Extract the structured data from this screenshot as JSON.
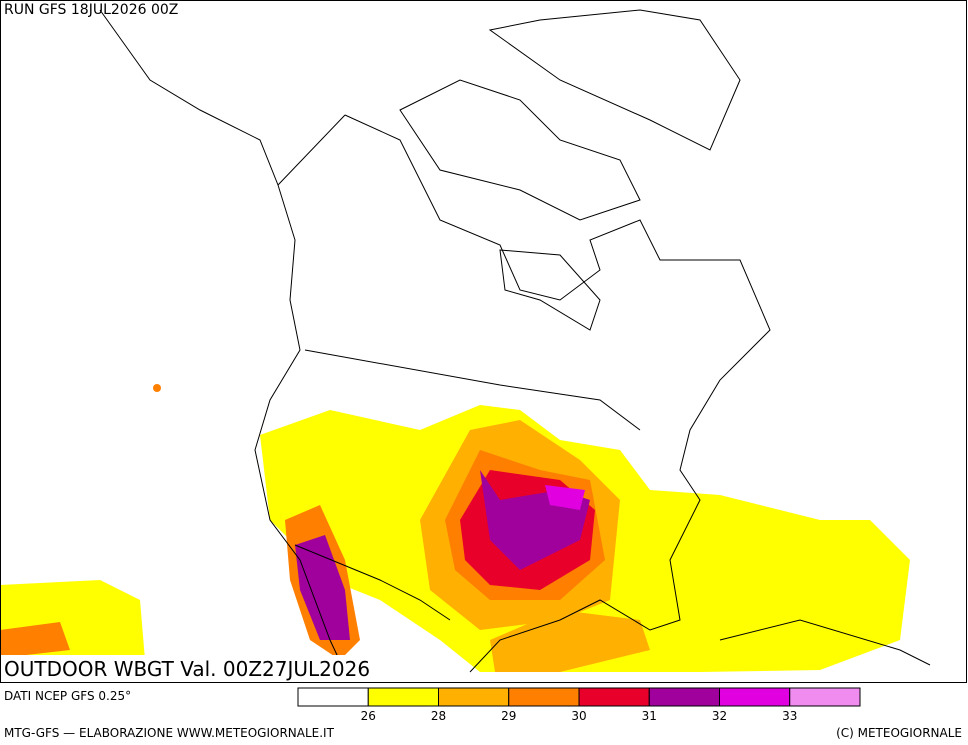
{
  "header": {
    "run": "RUN GFS 18JUL2026 00Z"
  },
  "map": {
    "title": "OUTDOOR WBGT Val. 00Z27JUL2026"
  },
  "legend": {
    "source": "DATI NCEP GFS 0.25°",
    "colors": [
      "#ffffff",
      "#ffff00",
      "#ffb000",
      "#ff7f00",
      "#e8002a",
      "#a0009c",
      "#e000e0",
      "#f08cf0"
    ],
    "ticks": [
      26,
      28,
      29,
      30,
      31,
      32,
      33
    ]
  },
  "footer": {
    "left": "MTG-GFS — ELABORAZIONE WWW.METEOGIORNALE.IT",
    "right": "(C) METEOGIORNALE"
  }
}
